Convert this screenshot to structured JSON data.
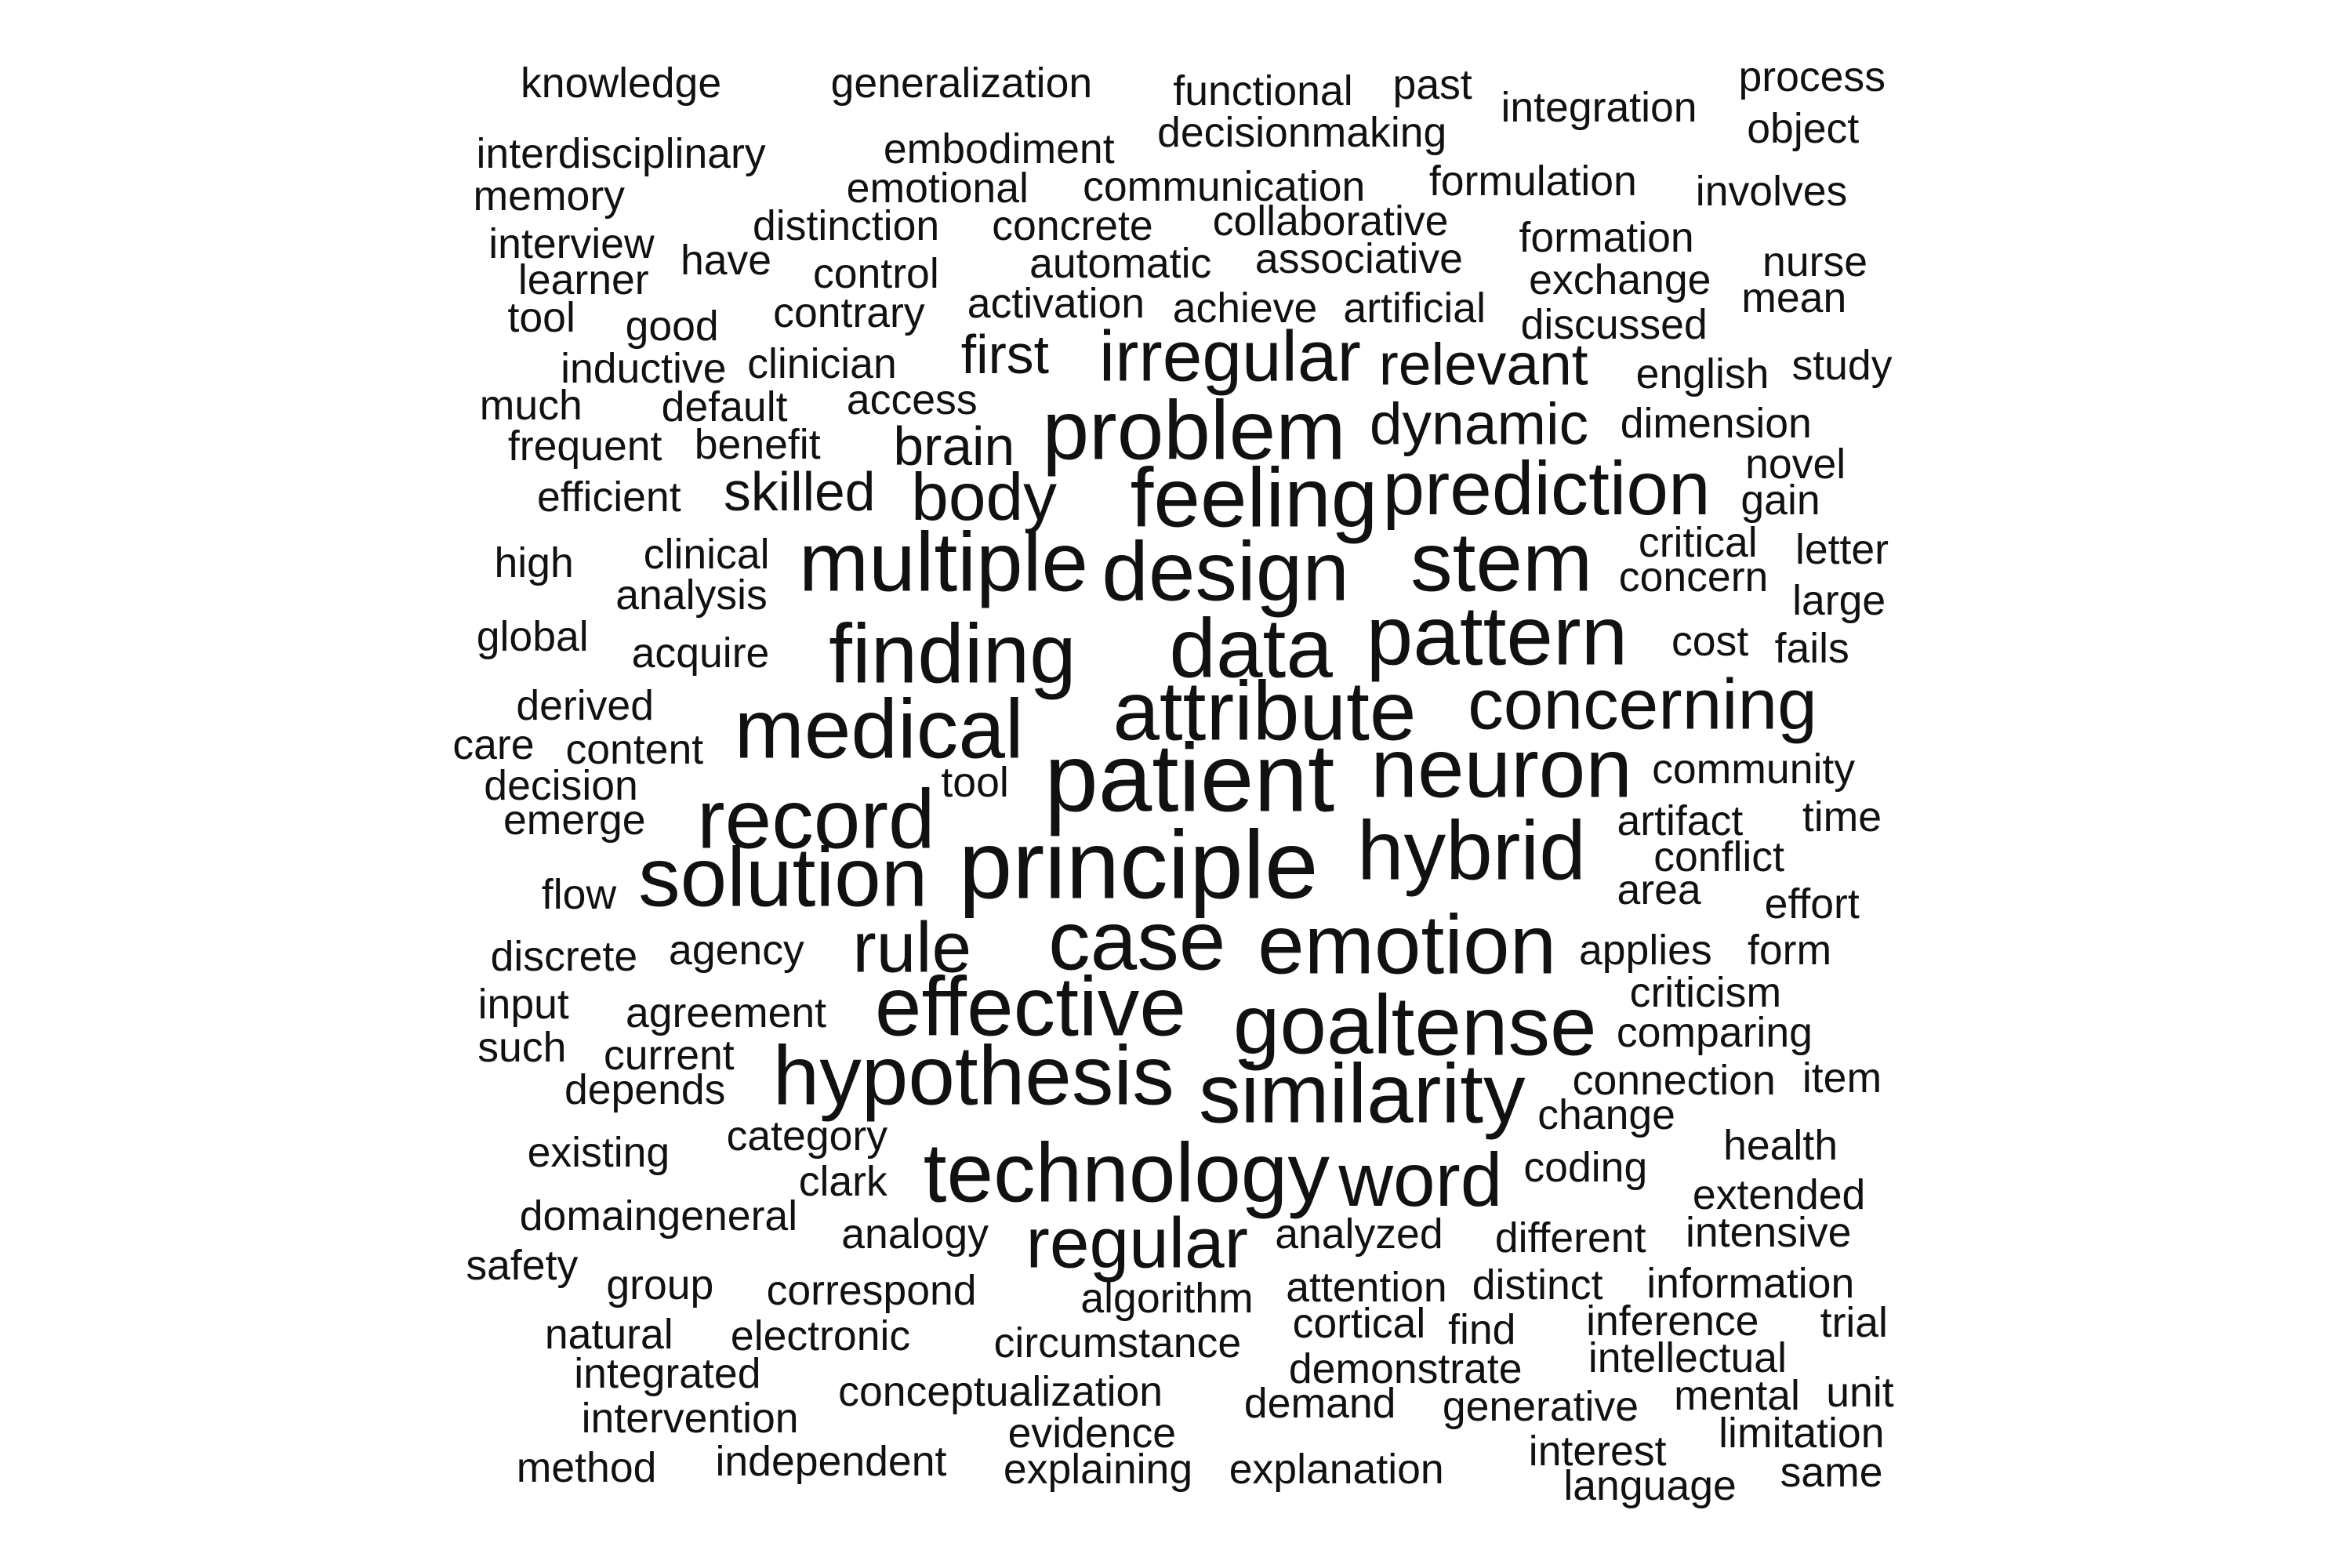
{
  "chart_data": {
    "type": "wordcloud",
    "words": [
      {
        "text": "knowledge",
        "weight": 1.0
      },
      {
        "text": "generalization",
        "weight": 1.0
      },
      {
        "text": "functional",
        "weight": 1.0
      },
      {
        "text": "past",
        "weight": 1.0
      },
      {
        "text": "integration",
        "weight": 1.0
      },
      {
        "text": "process",
        "weight": 1.0
      },
      {
        "text": "object",
        "weight": 1.0
      },
      {
        "text": "decisionmaking",
        "weight": 1.0
      },
      {
        "text": "interdisciplinary",
        "weight": 1.0
      },
      {
        "text": "embodiment",
        "weight": 1.0
      },
      {
        "text": "memory",
        "weight": 1.0
      },
      {
        "text": "emotional",
        "weight": 1.0
      },
      {
        "text": "communication",
        "weight": 1.0
      },
      {
        "text": "formulation",
        "weight": 1.0
      },
      {
        "text": "involves",
        "weight": 1.0
      },
      {
        "text": "interview",
        "weight": 1.0
      },
      {
        "text": "distinction",
        "weight": 1.0
      },
      {
        "text": "concrete",
        "weight": 1.0
      },
      {
        "text": "collaborative",
        "weight": 1.0
      },
      {
        "text": "formation",
        "weight": 1.0
      },
      {
        "text": "learner",
        "weight": 1.0
      },
      {
        "text": "have",
        "weight": 1.0
      },
      {
        "text": "control",
        "weight": 1.0
      },
      {
        "text": "automatic",
        "weight": 1.0
      },
      {
        "text": "associative",
        "weight": 1.0
      },
      {
        "text": "nurse",
        "weight": 1.0
      },
      {
        "text": "exchange",
        "weight": 1.0
      },
      {
        "text": "mean",
        "weight": 1.0
      },
      {
        "text": "tool",
        "weight": 1.0
      },
      {
        "text": "good",
        "weight": 1.0
      },
      {
        "text": "contrary",
        "weight": 1.0
      },
      {
        "text": "activation",
        "weight": 1.0
      },
      {
        "text": "achieve",
        "weight": 1.0
      },
      {
        "text": "artificial",
        "weight": 1.0
      },
      {
        "text": "discussed",
        "weight": 1.0
      },
      {
        "text": "inductive",
        "weight": 1.0
      },
      {
        "text": "clinician",
        "weight": 1.0
      },
      {
        "text": "first",
        "weight": 1.3
      },
      {
        "text": "irregular",
        "weight": 1.7
      },
      {
        "text": "relevant",
        "weight": 1.4
      },
      {
        "text": "english",
        "weight": 1.0
      },
      {
        "text": "study",
        "weight": 1.0
      },
      {
        "text": "much",
        "weight": 1.0
      },
      {
        "text": "default",
        "weight": 1.0
      },
      {
        "text": "access",
        "weight": 1.0
      },
      {
        "text": "problem",
        "weight": 2.0
      },
      {
        "text": "dynamic",
        "weight": 1.4
      },
      {
        "text": "dimension",
        "weight": 1.0
      },
      {
        "text": "frequent",
        "weight": 1.0
      },
      {
        "text": "benefit",
        "weight": 1.0
      },
      {
        "text": "brain",
        "weight": 1.3
      },
      {
        "text": "novel",
        "weight": 1.0
      },
      {
        "text": "efficient",
        "weight": 1.0
      },
      {
        "text": "skilled",
        "weight": 1.3
      },
      {
        "text": "body",
        "weight": 1.6
      },
      {
        "text": "feeling",
        "weight": 2.0
      },
      {
        "text": "prediction",
        "weight": 1.8
      },
      {
        "text": "gain",
        "weight": 1.0
      },
      {
        "text": "high",
        "weight": 1.0
      },
      {
        "text": "clinical",
        "weight": 1.0
      },
      {
        "text": "multiple",
        "weight": 2.0
      },
      {
        "text": "design",
        "weight": 2.0
      },
      {
        "text": "stem",
        "weight": 2.0
      },
      {
        "text": "critical",
        "weight": 1.0
      },
      {
        "text": "letter",
        "weight": 1.0
      },
      {
        "text": "analysis",
        "weight": 1.0
      },
      {
        "text": "concern",
        "weight": 1.0
      },
      {
        "text": "large",
        "weight": 1.0
      },
      {
        "text": "global",
        "weight": 1.0
      },
      {
        "text": "acquire",
        "weight": 1.0
      },
      {
        "text": "finding",
        "weight": 2.0
      },
      {
        "text": "data",
        "weight": 2.0
      },
      {
        "text": "pattern",
        "weight": 2.0
      },
      {
        "text": "cost",
        "weight": 1.0
      },
      {
        "text": "fails",
        "weight": 1.0
      },
      {
        "text": "derived",
        "weight": 1.0
      },
      {
        "text": "attribute",
        "weight": 2.0
      },
      {
        "text": "concerning",
        "weight": 1.7
      },
      {
        "text": "care",
        "weight": 1.0
      },
      {
        "text": "content",
        "weight": 1.0
      },
      {
        "text": "medical",
        "weight": 2.0
      },
      {
        "text": "patient",
        "weight": 2.3
      },
      {
        "text": "neuron",
        "weight": 2.0
      },
      {
        "text": "community",
        "weight": 1.0
      },
      {
        "text": "decision",
        "weight": 1.0
      },
      {
        "text": "tool",
        "weight": 1.0
      },
      {
        "text": "emerge",
        "weight": 1.0
      },
      {
        "text": "record",
        "weight": 2.0
      },
      {
        "text": "artifact",
        "weight": 1.0
      },
      {
        "text": "time",
        "weight": 1.0
      },
      {
        "text": "solution",
        "weight": 2.0
      },
      {
        "text": "principle",
        "weight": 2.3
      },
      {
        "text": "hybrid",
        "weight": 2.0
      },
      {
        "text": "conflict",
        "weight": 1.0
      },
      {
        "text": "flow",
        "weight": 1.0
      },
      {
        "text": "area",
        "weight": 1.0
      },
      {
        "text": "effort",
        "weight": 1.0
      },
      {
        "text": "discrete",
        "weight": 1.0
      },
      {
        "text": "agency",
        "weight": 1.0
      },
      {
        "text": "rule",
        "weight": 1.7
      },
      {
        "text": "case",
        "weight": 2.0
      },
      {
        "text": "emotion",
        "weight": 2.0
      },
      {
        "text": "applies",
        "weight": 1.0
      },
      {
        "text": "form",
        "weight": 1.0
      },
      {
        "text": "input",
        "weight": 1.0
      },
      {
        "text": "agreement",
        "weight": 1.0
      },
      {
        "text": "effective",
        "weight": 2.0
      },
      {
        "text": "goal",
        "weight": 2.0
      },
      {
        "text": "tense",
        "weight": 2.0
      },
      {
        "text": "criticism",
        "weight": 1.0
      },
      {
        "text": "such",
        "weight": 1.0
      },
      {
        "text": "current",
        "weight": 1.0
      },
      {
        "text": "comparing",
        "weight": 1.0
      },
      {
        "text": "depends",
        "weight": 1.0
      },
      {
        "text": "hypothesis",
        "weight": 2.0
      },
      {
        "text": "similarity",
        "weight": 2.0
      },
      {
        "text": "connection",
        "weight": 1.0
      },
      {
        "text": "item",
        "weight": 1.0
      },
      {
        "text": "change",
        "weight": 1.0
      },
      {
        "text": "category",
        "weight": 1.0
      },
      {
        "text": "existing",
        "weight": 1.0
      },
      {
        "text": "technology",
        "weight": 2.0
      },
      {
        "text": "word",
        "weight": 1.8
      },
      {
        "text": "health",
        "weight": 1.0
      },
      {
        "text": "coding",
        "weight": 1.0
      },
      {
        "text": "clark",
        "weight": 1.0
      },
      {
        "text": "extended",
        "weight": 1.0
      },
      {
        "text": "domaingeneral",
        "weight": 1.0
      },
      {
        "text": "analogy",
        "weight": 1.0
      },
      {
        "text": "regular",
        "weight": 1.7
      },
      {
        "text": "analyzed",
        "weight": 1.0
      },
      {
        "text": "different",
        "weight": 1.0
      },
      {
        "text": "intensive",
        "weight": 1.0
      },
      {
        "text": "safety",
        "weight": 1.0
      },
      {
        "text": "group",
        "weight": 1.0
      },
      {
        "text": "correspond",
        "weight": 1.0
      },
      {
        "text": "algorithm",
        "weight": 1.0
      },
      {
        "text": "attention",
        "weight": 1.0
      },
      {
        "text": "distinct",
        "weight": 1.0
      },
      {
        "text": "information",
        "weight": 1.0
      },
      {
        "text": "natural",
        "weight": 1.0
      },
      {
        "text": "electronic",
        "weight": 1.0
      },
      {
        "text": "circumstance",
        "weight": 1.0
      },
      {
        "text": "cortical",
        "weight": 1.0
      },
      {
        "text": "find",
        "weight": 1.0
      },
      {
        "text": "inference",
        "weight": 1.0
      },
      {
        "text": "trial",
        "weight": 1.0
      },
      {
        "text": "integrated",
        "weight": 1.0
      },
      {
        "text": "demonstrate",
        "weight": 1.0
      },
      {
        "text": "intellectual",
        "weight": 1.0
      },
      {
        "text": "conceptualization",
        "weight": 1.0
      },
      {
        "text": "intervention",
        "weight": 1.0
      },
      {
        "text": "demand",
        "weight": 1.0
      },
      {
        "text": "generative",
        "weight": 1.0
      },
      {
        "text": "mental",
        "weight": 1.0
      },
      {
        "text": "unit",
        "weight": 1.0
      },
      {
        "text": "evidence",
        "weight": 1.0
      },
      {
        "text": "limitation",
        "weight": 1.0
      },
      {
        "text": "interest",
        "weight": 1.0
      },
      {
        "text": "method",
        "weight": 1.0
      },
      {
        "text": "independent",
        "weight": 1.0
      },
      {
        "text": "explaining",
        "weight": 1.0
      },
      {
        "text": "explanation",
        "weight": 1.0
      },
      {
        "text": "same",
        "weight": 1.0
      },
      {
        "text": "language",
        "weight": 1.0
      }
    ]
  }
}
